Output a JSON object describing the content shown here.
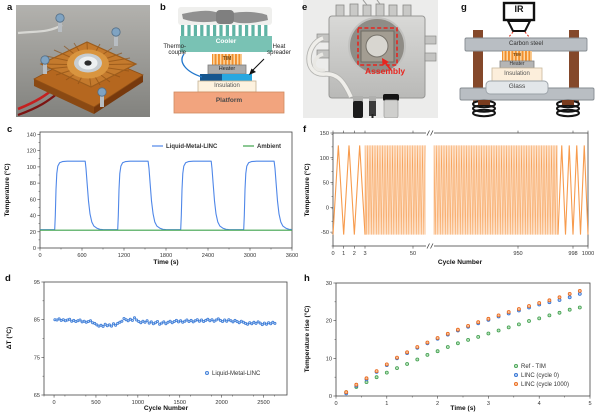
{
  "panel_labels": {
    "a": "a",
    "b": "b",
    "c": "c",
    "d": "d",
    "e": "e",
    "f": "f",
    "g": "g",
    "h": "h"
  },
  "diagram_b": {
    "cooler": "Cooler",
    "tim": "TIM",
    "heater": "Heater",
    "insulation": "Insulation",
    "platform": "Platform",
    "thermocouple": "Thermo-couple",
    "heat_spreader": "Heat spreader"
  },
  "photo_e": {
    "assembly": "Assembly"
  },
  "diagram_g": {
    "ir": "IR",
    "carbon_steel": "Carbon steel",
    "tim": "TIM",
    "heater": "Heater",
    "insulation": "Insulation",
    "glass": "Glass"
  },
  "colors": {
    "linc_blue": "#4f87e8",
    "ambient_green": "#3fa34d",
    "cycle_orange": "#f79b4d",
    "ref_green": "#3f9e4d",
    "cycle0_blue": "#2f6fd0",
    "cycle1000_orange": "#e8661a",
    "assembly_red": "#e8251f",
    "cooler_teal": "#79c2b4",
    "spreader_blue": "#28a7e0",
    "platform_salmon": "#f2a47e"
  },
  "chart_data": [
    {
      "id": "c",
      "type": "line",
      "xlabel": "Time (s)",
      "ylabel": "Temperature (°C)",
      "x_range": [
        0,
        3600
      ],
      "y_range": [
        0,
        143
      ],
      "x_ticks": [
        0,
        600,
        1200,
        1800,
        2400,
        3000,
        3600
      ],
      "x_minor_step": 300,
      "y_ticks": [
        0,
        20,
        40,
        60,
        80,
        100,
        120,
        140
      ],
      "y_minor_step": 10,
      "legend": [
        "Liquid-Metal-LINC",
        "Ambient"
      ],
      "legend_position": "top-right-inside",
      "series": [
        {
          "name": "Liquid-Metal-LINC",
          "color": "#4f87e8",
          "points": [
            [
              0,
              22.5
            ],
            [
              210,
              22.5
            ],
            [
              218,
              40
            ],
            [
              228,
              72
            ],
            [
              240,
              92
            ],
            [
              255,
              101
            ],
            [
              280,
              105
            ],
            [
              320,
              106.5
            ],
            [
              390,
              107
            ],
            [
              645,
              107
            ],
            [
              657,
              98
            ],
            [
              673,
              80
            ],
            [
              693,
              58
            ],
            [
              715,
              42
            ],
            [
              740,
              32
            ],
            [
              770,
              27
            ],
            [
              810,
              24.5
            ],
            [
              855,
              23
            ],
            [
              905,
              22.6
            ],
            [
              1110,
              22.5
            ],
            [
              1118,
              40
            ],
            [
              1128,
              72
            ],
            [
              1140,
              92
            ],
            [
              1155,
              101
            ],
            [
              1180,
              105
            ],
            [
              1220,
              106.5
            ],
            [
              1290,
              107
            ],
            [
              1545,
              107
            ],
            [
              1557,
              98
            ],
            [
              1573,
              80
            ],
            [
              1593,
              58
            ],
            [
              1615,
              42
            ],
            [
              1640,
              32
            ],
            [
              1670,
              27
            ],
            [
              1710,
              24.5
            ],
            [
              1755,
              23
            ],
            [
              1805,
              22.6
            ],
            [
              2010,
              22.5
            ],
            [
              2018,
              40
            ],
            [
              2028,
              72
            ],
            [
              2040,
              92
            ],
            [
              2055,
              101
            ],
            [
              2080,
              105
            ],
            [
              2120,
              106.5
            ],
            [
              2190,
              107
            ],
            [
              2445,
              107
            ],
            [
              2457,
              98
            ],
            [
              2473,
              80
            ],
            [
              2493,
              58
            ],
            [
              2515,
              42
            ],
            [
              2540,
              32
            ],
            [
              2570,
              27
            ],
            [
              2610,
              24.5
            ],
            [
              2655,
              23
            ],
            [
              2705,
              22.6
            ],
            [
              2910,
              22.5
            ],
            [
              2918,
              40
            ],
            [
              2928,
              72
            ],
            [
              2940,
              92
            ],
            [
              2955,
              101
            ],
            [
              2980,
              105
            ],
            [
              3020,
              106.5
            ],
            [
              3090,
              107
            ],
            [
              3345,
              107
            ],
            [
              3357,
              98
            ],
            [
              3373,
              80
            ],
            [
              3393,
              58
            ],
            [
              3415,
              42
            ],
            [
              3440,
              32
            ],
            [
              3470,
              27
            ],
            [
              3510,
              24.5
            ],
            [
              3555,
              23
            ],
            [
              3600,
              22.8
            ]
          ]
        },
        {
          "name": "Ambient",
          "color": "#3fa34d",
          "points": [
            [
              0,
              22
            ],
            [
              3600,
              22
            ]
          ]
        }
      ]
    },
    {
      "id": "d",
      "type": "scatter",
      "xlabel": "Cycle Number",
      "ylabel": "ΔT (°C)",
      "x_range": [
        -120,
        2780
      ],
      "y_range": [
        65,
        95
      ],
      "x_ticks": [
        0,
        500,
        1000,
        1500,
        2000,
        2500
      ],
      "x_minor_step": 250,
      "y_ticks": [
        65,
        75,
        85,
        95
      ],
      "y_minor_step": 5,
      "legend": [
        "Liquid-Metal-LINC"
      ],
      "legend_position": "bottom-right-inside",
      "series": [
        {
          "name": "Liquid-Metal-LINC",
          "color": "#3b7ad6",
          "fill": "#b9d4f5",
          "x_start": 10,
          "x_step": 25,
          "values": [
            85.0,
            84.9,
            85.2,
            84.8,
            85.0,
            84.7,
            84.9,
            85.1,
            84.6,
            84.8,
            84.5,
            84.7,
            84.9,
            84.4,
            84.6,
            84.3,
            84.5,
            84.7,
            84.2,
            84.0,
            83.6,
            83.3,
            83.5,
            83.2,
            83.8,
            83.4,
            83.6,
            83.3,
            83.9,
            83.5,
            84.0,
            84.3,
            84.6,
            85.3,
            85.0,
            84.7,
            85.1,
            84.8,
            85.5,
            84.9,
            84.5,
            84.2,
            84.6,
            84.3,
            84.7,
            84.1,
            84.4,
            83.9,
            84.2,
            84.5,
            83.8,
            84.1,
            84.4,
            83.9,
            84.3,
            84.6,
            84.2,
            84.5,
            84.8,
            84.4,
            84.7,
            84.3,
            84.6,
            84.9,
            84.5,
            84.8,
            84.4,
            84.7,
            85.0,
            84.6,
            84.9,
            84.5,
            84.8,
            85.1,
            84.7,
            85.0,
            84.6,
            84.9,
            85.2,
            84.8,
            84.5,
            84.9,
            84.6,
            85.0,
            84.7,
            84.4,
            84.8,
            84.5,
            84.2,
            84.6,
            84.3,
            84.0,
            83.8,
            84.2,
            83.9,
            84.3,
            84.0,
            84.4,
            84.1,
            83.7,
            84.1,
            83.8,
            84.2,
            83.9,
            84.3,
            84.0
          ]
        }
      ]
    },
    {
      "id": "f",
      "type": "line",
      "xlabel": "Cycle Number",
      "ylabel": "Temperature (°C)",
      "y_range": [
        -78,
        150
      ],
      "y_ticks": [
        -50,
        0,
        50,
        100,
        150
      ],
      "y_minor_step": 25,
      "x_tick_labels": [
        "0",
        "1",
        "2",
        "3",
        "50",
        "950",
        "998",
        "1000"
      ],
      "axis_break": true,
      "color": "#f79b4d",
      "wave": {
        "shape": "triangle",
        "min": -55,
        "max": 125,
        "total_cycles": 1000,
        "left_triangle_cycles": [
          0,
          3
        ],
        "right_triangle_cycles": [
          996,
          1000
        ],
        "dense_blocks": [
          [
            3,
            550
          ],
          [
            550,
            996
          ]
        ]
      }
    },
    {
      "id": "h",
      "type": "scatter",
      "xlabel": "Time (s)",
      "ylabel": "Temperature rise (°C)",
      "x_range": [
        0,
        5
      ],
      "y_range": [
        0,
        30
      ],
      "x_ticks": [
        0,
        1,
        2,
        3,
        4,
        5
      ],
      "x_minor_step": 0.5,
      "y_ticks": [
        0,
        10,
        20,
        30
      ],
      "y_minor_step": 5,
      "legend": [
        "Ref - TIM",
        "LINC (cycle 0)",
        "LINC (cycle 1000)"
      ],
      "legend_position": "bottom-right-inside",
      "series": [
        {
          "name": "Ref - TIM",
          "color": "#3f9e4d",
          "fill": "#b7e0ba",
          "x_start": 0.2,
          "x_step": 0.2,
          "values": [
            1.0,
            2.4,
            3.7,
            5.0,
            6.2,
            7.4,
            8.5,
            9.7,
            10.9,
            11.9,
            13.0,
            14.0,
            14.9,
            15.7,
            16.6,
            17.4,
            18.2,
            19.0,
            19.9,
            20.6,
            21.4,
            22.1,
            22.9,
            23.5
          ]
        },
        {
          "name": "LINC (cycle 0)",
          "color": "#2f6fd0",
          "fill": "#a6c6f2",
          "x_start": 0.2,
          "x_step": 0.2,
          "values": [
            0.7,
            2.7,
            4.4,
            6.4,
            8.2,
            10.0,
            11.4,
            12.8,
            14.0,
            15.2,
            16.3,
            17.4,
            18.4,
            19.3,
            20.2,
            21.1,
            21.9,
            22.7,
            23.5,
            24.3,
            24.9,
            25.5,
            26.2,
            27.1
          ]
        },
        {
          "name": "LINC (cycle 1000)",
          "color": "#e8661a",
          "fill": "#fac095",
          "x_start": 0.2,
          "x_step": 0.2,
          "values": [
            1.0,
            3.0,
            4.7,
            6.6,
            8.4,
            10.2,
            11.6,
            13.0,
            14.2,
            15.4,
            16.5,
            17.6,
            18.6,
            19.6,
            20.5,
            21.4,
            22.3,
            23.1,
            23.9,
            24.7,
            25.4,
            26.2,
            27.1,
            27.9
          ]
        }
      ]
    }
  ]
}
